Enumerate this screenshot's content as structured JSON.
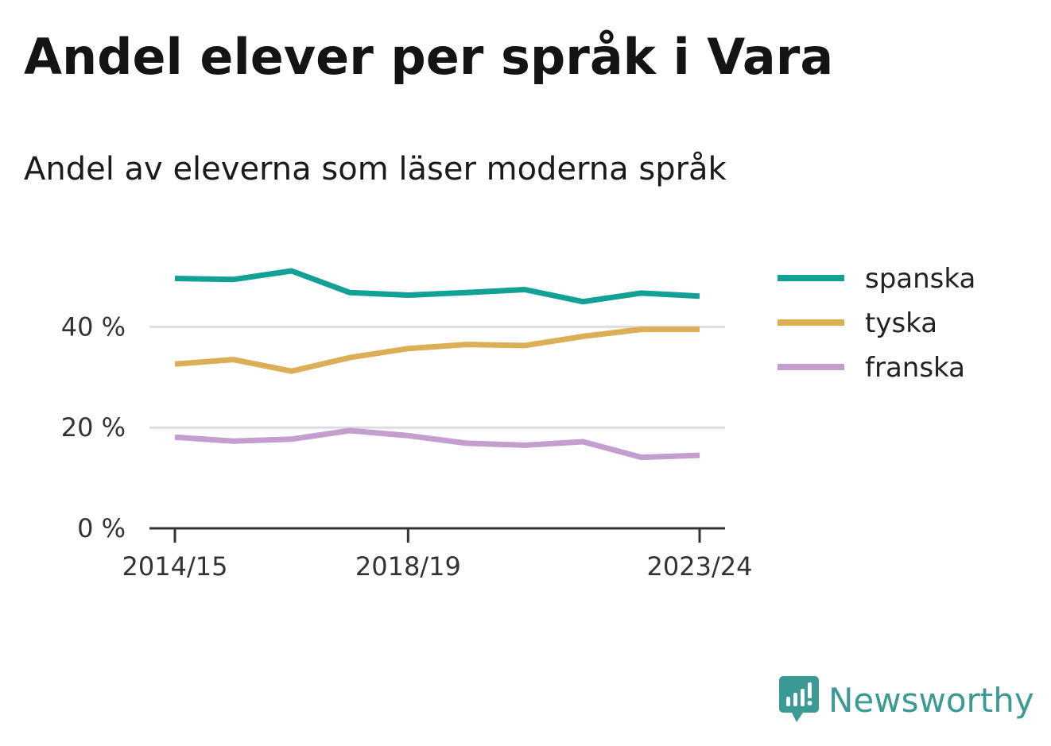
{
  "title": "Andel elever per språk i Vara",
  "subtitle": "Andel av eleverna som läser moderna språk",
  "brand": "Newsworthy",
  "colors": {
    "spanska": "#13a096",
    "tyska": "#dcae55",
    "franska": "#c39ecf",
    "grid": "#dddddd",
    "axis": "#333333",
    "brand": "#3a9a94"
  },
  "chart_data": {
    "type": "line",
    "x": [
      "2014/15",
      "2015/16",
      "2016/17",
      "2017/18",
      "2018/19",
      "2019/20",
      "2020/21",
      "2021/22",
      "2022/23",
      "2023/24"
    ],
    "x_tick_labels": [
      "2014/15",
      "2018/19",
      "2023/24"
    ],
    "y_ticks": [
      0,
      20,
      40
    ],
    "y_tick_labels": [
      "0 %",
      "20 %",
      "40 %"
    ],
    "ylim": [
      0,
      55
    ],
    "grid": true,
    "legend_position": "right",
    "series": [
      {
        "name": "spanska",
        "values": [
          49.6,
          49.4,
          51.1,
          46.8,
          46.3,
          46.8,
          47.4,
          45.0,
          46.7,
          46.1
        ]
      },
      {
        "name": "tyska",
        "values": [
          32.6,
          33.5,
          31.2,
          33.9,
          35.7,
          36.5,
          36.3,
          38.1,
          39.5,
          39.5
        ]
      },
      {
        "name": "franska",
        "values": [
          18.1,
          17.3,
          17.7,
          19.4,
          18.4,
          16.9,
          16.5,
          17.2,
          14.1,
          14.5
        ]
      }
    ]
  }
}
